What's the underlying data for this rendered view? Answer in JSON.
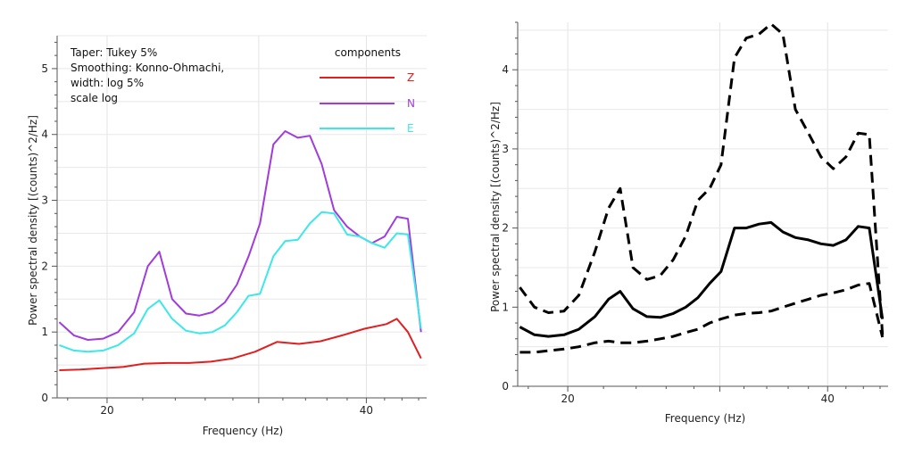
{
  "chart_data": [
    {
      "type": "line",
      "xlabel": "Frequency (Hz)",
      "ylabel": "Power spectral density [(counts)^2/Hz]",
      "xscale": "log",
      "xlim": [
        17.5,
        47
      ],
      "ylim": [
        0,
        5.5
      ],
      "xticks": [
        20,
        40
      ],
      "yticks": [
        0,
        1,
        2,
        3,
        4,
        5
      ],
      "grid": true,
      "annotations": [
        "Taper: Tukey 5%",
        "Smoothing: Konno-Ohmachi,",
        "width: log 5%",
        "scale log"
      ],
      "legend": {
        "title": "components",
        "position": "top-right"
      },
      "series": [
        {
          "name": "Z",
          "color": "#e02020",
          "x": [
            17.6,
            18.6,
            19.7,
            20.9,
            22.1,
            23.5,
            24.9,
            26.4,
            28.0,
            29.7,
            31.5,
            33.4,
            35.4,
            37.5,
            39.8,
            42.2,
            43.4,
            44.7,
            46.3
          ],
          "y": [
            0.42,
            0.43,
            0.45,
            0.47,
            0.52,
            0.53,
            0.53,
            0.55,
            0.6,
            0.7,
            0.85,
            0.82,
            0.86,
            0.95,
            1.05,
            1.12,
            1.2,
            1.0,
            0.6
          ]
        },
        {
          "name": "N",
          "color": "#a03cdc",
          "x": [
            17.6,
            18.3,
            19.0,
            19.8,
            20.6,
            21.5,
            22.3,
            23.0,
            23.8,
            24.7,
            25.6,
            26.5,
            27.4,
            28.3,
            29.2,
            30.1,
            31.2,
            32.2,
            33.3,
            34.4,
            35.5,
            36.7,
            38.0,
            39.3,
            40.6,
            42.0,
            43.4,
            44.7,
            46.3
          ],
          "y": [
            1.15,
            0.95,
            0.88,
            0.9,
            1.0,
            1.3,
            2.0,
            2.22,
            1.5,
            1.28,
            1.25,
            1.3,
            1.45,
            1.72,
            2.15,
            2.65,
            3.85,
            4.05,
            3.95,
            3.98,
            3.55,
            2.85,
            2.6,
            2.45,
            2.35,
            2.45,
            2.75,
            2.72,
            1.0
          ]
        },
        {
          "name": "E",
          "color": "#3ce8e8",
          "x": [
            17.6,
            18.3,
            19.0,
            19.8,
            20.6,
            21.5,
            22.3,
            23.0,
            23.8,
            24.7,
            25.6,
            26.5,
            27.4,
            28.3,
            29.2,
            30.1,
            31.2,
            32.2,
            33.3,
            34.4,
            35.5,
            36.7,
            38.0,
            39.3,
            40.6,
            42.0,
            43.4,
            44.7,
            46.3
          ],
          "y": [
            0.8,
            0.72,
            0.7,
            0.72,
            0.8,
            0.98,
            1.35,
            1.48,
            1.2,
            1.02,
            0.98,
            1.0,
            1.1,
            1.3,
            1.55,
            1.58,
            2.15,
            2.38,
            2.4,
            2.65,
            2.82,
            2.8,
            2.48,
            2.45,
            2.35,
            2.28,
            2.5,
            2.48,
            1.05
          ]
        }
      ]
    },
    {
      "type": "line",
      "xlabel": "Frequency (Hz)",
      "ylabel": "Power spectral density [(counts)^2/Hz]",
      "xscale": "log",
      "xlim": [
        17.5,
        47
      ],
      "ylim": [
        0,
        4.6
      ],
      "xticks": [
        20,
        40
      ],
      "yticks": [
        0,
        1,
        2,
        3,
        4
      ],
      "grid": true,
      "series": [
        {
          "color": "#000000",
          "style": "dashed",
          "x": [
            17.6,
            18.3,
            19.0,
            19.8,
            20.6,
            21.5,
            22.3,
            23.0,
            23.8,
            24.7,
            25.6,
            26.5,
            27.4,
            28.3,
            29.2,
            30.1,
            31.2,
            32.2,
            33.3,
            34.4,
            35.5,
            36.7,
            38.0,
            39.3,
            40.6,
            42.0,
            43.4,
            44.7,
            46.3
          ],
          "y": [
            1.25,
            1.0,
            0.93,
            0.95,
            1.15,
            1.7,
            2.25,
            2.5,
            1.5,
            1.35,
            1.4,
            1.6,
            1.9,
            2.35,
            2.5,
            2.8,
            4.15,
            4.4,
            4.45,
            4.58,
            4.45,
            3.5,
            3.2,
            2.9,
            2.75,
            2.9,
            3.2,
            3.18,
            0.65
          ]
        },
        {
          "color": "#000000",
          "style": "solid",
          "x": [
            17.6,
            18.3,
            19.0,
            19.8,
            20.6,
            21.5,
            22.3,
            23.0,
            23.8,
            24.7,
            25.6,
            26.5,
            27.4,
            28.3,
            29.2,
            30.1,
            31.2,
            32.2,
            33.3,
            34.4,
            35.5,
            36.7,
            38.0,
            39.3,
            40.6,
            42.0,
            43.4,
            44.7,
            46.3
          ],
          "y": [
            0.75,
            0.65,
            0.63,
            0.65,
            0.72,
            0.88,
            1.1,
            1.2,
            0.98,
            0.88,
            0.87,
            0.92,
            1.0,
            1.12,
            1.3,
            1.45,
            2.0,
            2.0,
            2.05,
            2.07,
            1.95,
            1.88,
            1.85,
            1.8,
            1.78,
            1.85,
            2.02,
            2.0,
            0.85
          ]
        },
        {
          "color": "#000000",
          "style": "dashed",
          "x": [
            17.6,
            18.3,
            19.0,
            19.8,
            20.6,
            21.5,
            22.3,
            23.0,
            23.8,
            24.7,
            25.6,
            26.5,
            27.4,
            28.3,
            29.2,
            30.1,
            31.2,
            32.2,
            33.3,
            34.4,
            35.5,
            36.7,
            38.0,
            39.3,
            40.6,
            42.0,
            43.4,
            44.7,
            46.3
          ],
          "y": [
            0.43,
            0.43,
            0.45,
            0.47,
            0.5,
            0.55,
            0.57,
            0.55,
            0.55,
            0.57,
            0.6,
            0.63,
            0.68,
            0.72,
            0.8,
            0.85,
            0.9,
            0.92,
            0.93,
            0.95,
            1.0,
            1.05,
            1.1,
            1.15,
            1.18,
            1.22,
            1.28,
            1.3,
            0.62
          ]
        }
      ]
    }
  ]
}
